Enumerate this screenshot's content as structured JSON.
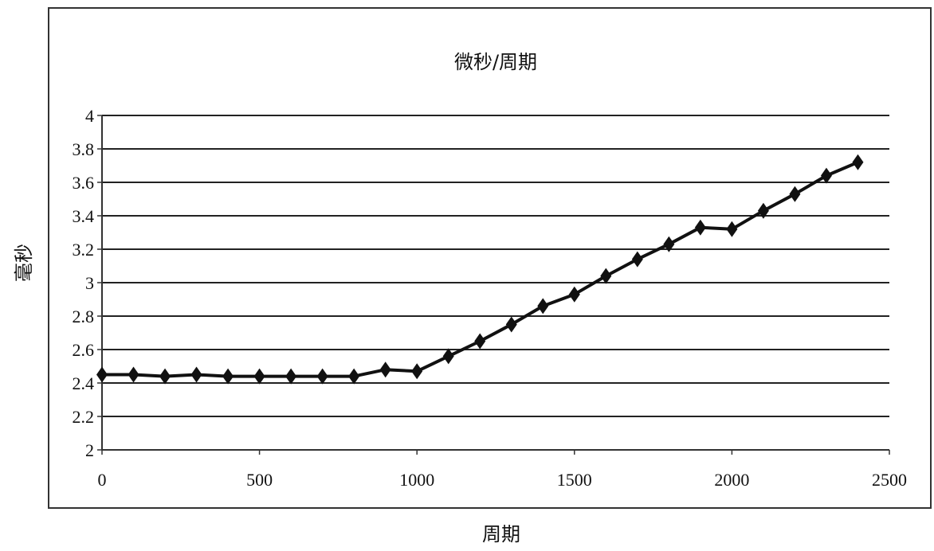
{
  "chart_data": {
    "type": "line",
    "title": "微秒/周期",
    "xlabel": "周期",
    "ylabel": "毫秒",
    "xlim": [
      0,
      2500
    ],
    "ylim": [
      2,
      4
    ],
    "x_ticks": [
      "0",
      "500",
      "1000",
      "1500",
      "2000",
      "2500"
    ],
    "y_ticks": [
      "2",
      "2.2",
      "2.4",
      "2.6",
      "2.8",
      "3",
      "3.2",
      "3.4",
      "3.6",
      "3.8",
      "4"
    ],
    "grid": "horizontal",
    "marker": "diamond",
    "legend": "none",
    "colors": {
      "line": "#111111",
      "grid": "#222222",
      "frame": "#333333"
    },
    "series": [
      {
        "x": [
          0,
          100,
          200,
          300,
          400,
          500,
          600,
          700,
          800,
          900,
          1000,
          1100,
          1200,
          1300,
          1400,
          1500,
          1600,
          1700,
          1800,
          1900,
          2000,
          2100,
          2200,
          2300,
          2400
        ],
        "y": [
          2.45,
          2.45,
          2.44,
          2.45,
          2.44,
          2.44,
          2.44,
          2.44,
          2.44,
          2.48,
          2.47,
          2.56,
          2.65,
          2.75,
          2.86,
          2.93,
          3.04,
          3.14,
          3.23,
          3.33,
          3.32,
          3.43,
          3.53,
          3.64,
          3.72
        ]
      }
    ]
  }
}
